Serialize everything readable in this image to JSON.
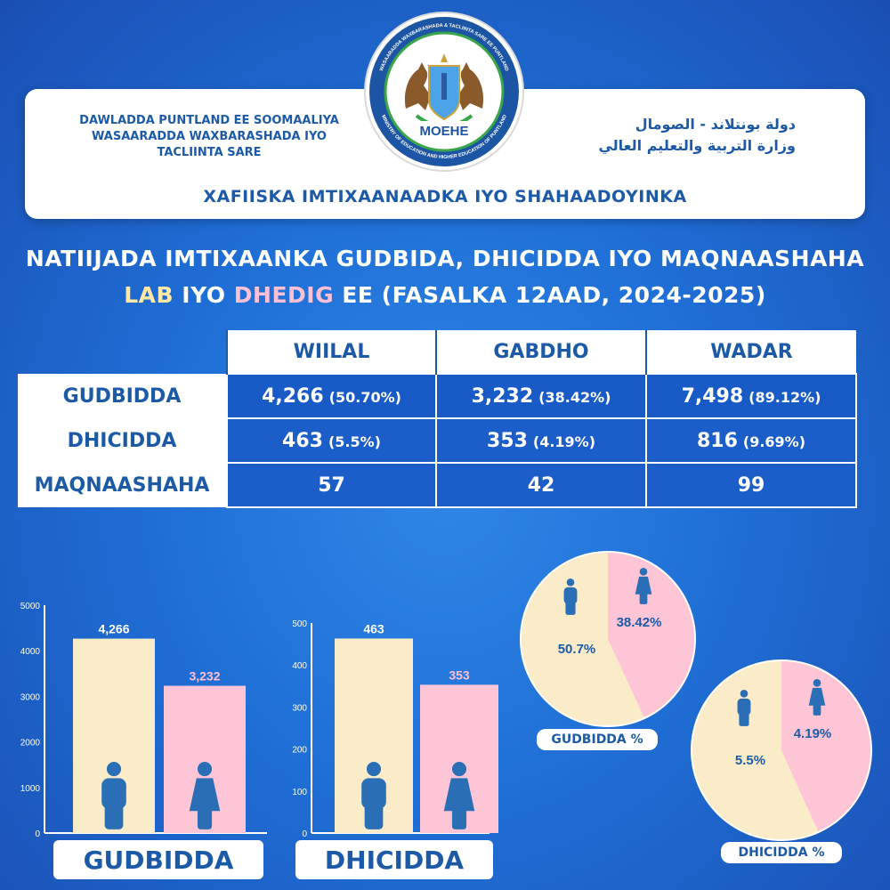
{
  "header": {
    "left_line1": "DAWLADDA PUNTLAND EE SOOMAALIYA",
    "left_line2": "WASAARADDA WAXBARASHADA IYO",
    "left_line3": "TACLIINTA SARE",
    "right_line1": "دولة بونتلاند - الصومال",
    "right_line2": "وزارة التربية والتعليم العالي",
    "office": "XAFIISKA IMTIXAANAADKA IYO SHAHAADOYINKA",
    "logo_text": "MOEHE",
    "logo_ring_top": "WASAARADDA WAXBARASHADA & TACLIINTA SARE EE PUNTLAND",
    "logo_ring_bottom": "MINISTRY OF EDUCATION AND HIGHER EDUCATION OF PUNTLAND"
  },
  "title": {
    "line1": "NATIIJADA IMTIXAANKA GUDBIDA, DHICIDDA IYO MAQNAASHAHA",
    "lab": "LAB",
    "iyo": " IYO ",
    "dhedig": "DHEDIG",
    "rest": " EE (FASALKA 12AAD, 2024-2025)"
  },
  "table": {
    "headers": [
      "WIILAL",
      "GABDHO",
      "WADAR"
    ],
    "rows": [
      {
        "label": "GUDBIDDA",
        "cells": [
          {
            "v": "4,266",
            "p": "(50.70%)"
          },
          {
            "v": "3,232",
            "p": "(38.42%)"
          },
          {
            "v": "7,498",
            "p": "(89.12%)"
          }
        ]
      },
      {
        "label": "DHICIDDA",
        "cells": [
          {
            "v": "463",
            "p": "(5.5%)"
          },
          {
            "v": "353",
            "p": "(4.19%)"
          },
          {
            "v": "816",
            "p": "(9.69%)"
          }
        ]
      },
      {
        "label": "MAQNAASHAHA",
        "cells": [
          {
            "v": "57",
            "p": ""
          },
          {
            "v": "42",
            "p": ""
          },
          {
            "v": "99",
            "p": ""
          }
        ]
      }
    ]
  },
  "colors": {
    "male": "#fbecc9",
    "female": "#fec5d6",
    "icon": "#2a6fb6",
    "brand": "#1c5aa8"
  },
  "chart_data": [
    {
      "type": "bar",
      "categories": [
        "WIILAL",
        "GABDHO"
      ],
      "values": [
        4266,
        3232
      ],
      "value_labels": [
        "4,266",
        "3,232"
      ],
      "ylim": [
        0,
        5000
      ],
      "yticks": [
        "0",
        "1000",
        "2000",
        "3000",
        "4000",
        "5000"
      ],
      "label": "GUDBIDDA"
    },
    {
      "type": "bar",
      "categories": [
        "WIILAL",
        "GABDHO"
      ],
      "values": [
        463,
        353
      ],
      "value_labels": [
        "463",
        "353"
      ],
      "ylim": [
        0,
        500
      ],
      "yticks": [
        "0",
        "100",
        "200",
        "300",
        "400",
        "500"
      ],
      "label": "DHICIDDA"
    },
    {
      "type": "pie",
      "values": [
        50.7,
        38.42
      ],
      "value_labels": [
        "50.7%",
        "38.42%"
      ],
      "label": "GUDBIDDA %"
    },
    {
      "type": "pie",
      "values": [
        5.5,
        4.19
      ],
      "value_labels": [
        "5.5%",
        "4.19%"
      ],
      "label": "DHICIDDA %"
    }
  ]
}
